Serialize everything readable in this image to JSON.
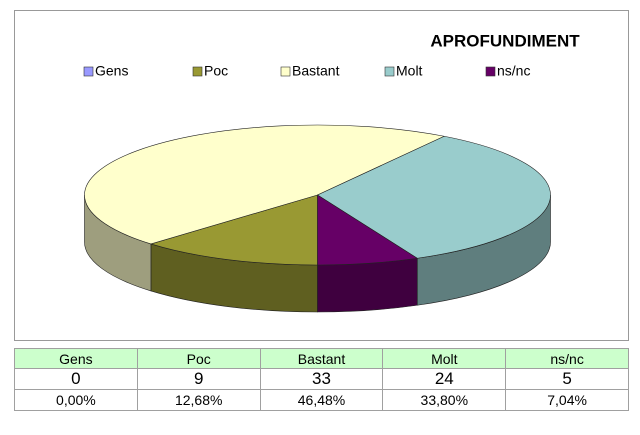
{
  "chart_data": {
    "type": "pie",
    "title": "APROFUNDIMENT",
    "categories": [
      "Gens",
      "Poc",
      "Bastant",
      "Molt",
      "ns/nc"
    ],
    "values": [
      0,
      9,
      33,
      24,
      5
    ],
    "colors": [
      "#9999ff",
      "#999933",
      "#ffffcc",
      "#99cccc",
      "#660066"
    ],
    "legend": "top"
  },
  "table": {
    "percentages": [
      "0,00%",
      "12,68%",
      "46,48%",
      "33,80%",
      "7,04%"
    ]
  }
}
